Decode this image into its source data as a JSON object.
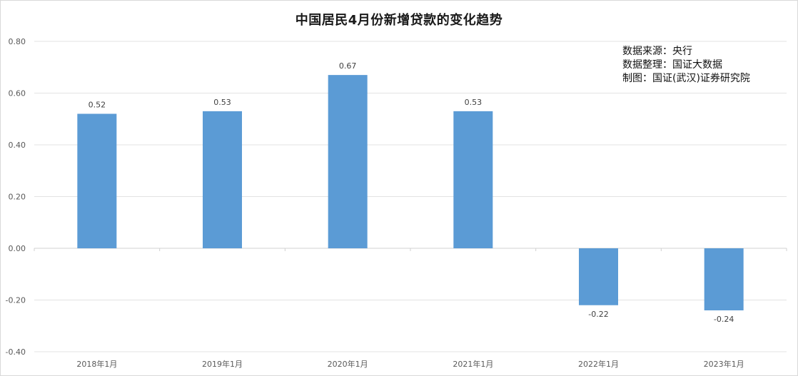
{
  "chart_data": {
    "type": "bar",
    "title": "中国居民4月份新增贷款的变化趋势",
    "categories": [
      "2018年1月",
      "2019年1月",
      "2020年1月",
      "2021年1月",
      "2022年1月",
      "2023年1月"
    ],
    "values": [
      0.52,
      0.53,
      0.67,
      0.53,
      -0.22,
      -0.24
    ],
    "value_labels": [
      "0.52",
      "0.53",
      "0.67",
      "0.53",
      "-0.22",
      "-0.24"
    ],
    "y_ticks": [
      "0.80",
      "0.60",
      "0.40",
      "0.20",
      "0.00",
      "-0.20",
      "-0.40"
    ],
    "y_tick_values": [
      0.8,
      0.6,
      0.4,
      0.2,
      0.0,
      -0.2,
      -0.4
    ],
    "ylim": [
      -0.4,
      0.8
    ],
    "xlabel": "",
    "ylabel": "",
    "grid": true,
    "legend": "none",
    "bar_color": "#5b9bd5",
    "annotations": [
      "数据来源：央行",
      "数据整理：国证大数据",
      "制图：国证(武汉)证券研究院"
    ]
  }
}
